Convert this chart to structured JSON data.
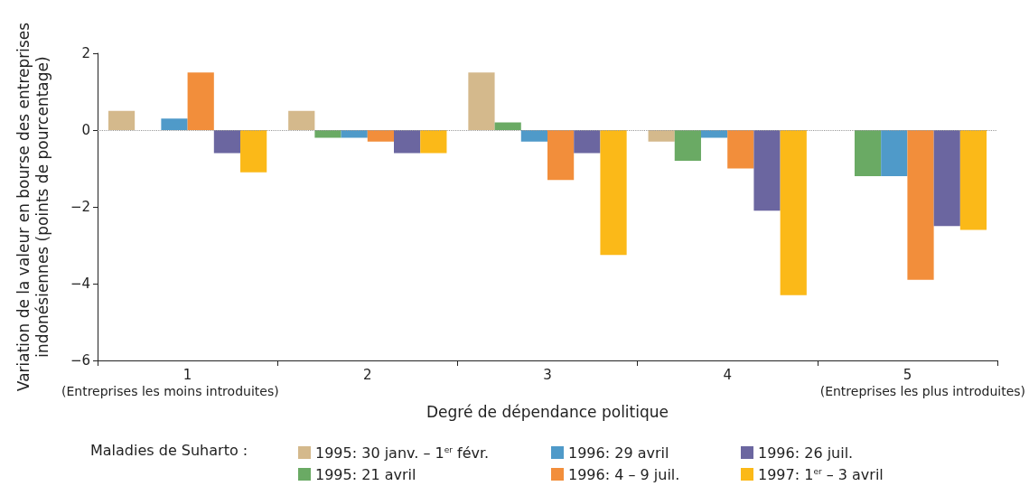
{
  "chart_data": {
    "type": "bar",
    "xlabel": "Degré de dépendance politique",
    "ylabel": "Variation de la valeur en bourse des entreprises indonésiennes (points de pourcentage)",
    "legend_title": "Maladies de Suharto :",
    "categories": [
      "1",
      "2",
      "3",
      "4",
      "5"
    ],
    "series": [
      {
        "name": "1995: 30 janv. – 1$^{er}$ févr.",
        "color": "#d4b98c",
        "values": [
          0.5,
          0.5,
          1.5,
          -0.3,
          null
        ]
      },
      {
        "name": "1995: 21 avril",
        "color": "#6aaa64",
        "values": [
          null,
          -0.2,
          0.2,
          -0.8,
          -1.2
        ]
      },
      {
        "name": "1996: 29 avril",
        "color": "#4f9ac9",
        "values": [
          0.3,
          -0.2,
          -0.3,
          -0.2,
          -1.2
        ]
      },
      {
        "name": "1996: 4 – 9 juil.",
        "color": "#f28e3b",
        "values": [
          1.5,
          -0.3,
          -1.3,
          -1.0,
          -3.9
        ]
      },
      {
        "name": "1996: 26 juil.",
        "color": "#6b66a0",
        "values": [
          -0.6,
          -0.6,
          -0.6,
          -2.1,
          -2.5
        ]
      },
      {
        "name": "1997: 1$^{er}$ – 3 avril",
        "color": "#fbb918",
        "values": [
          -1.1,
          -0.6,
          -3.25,
          -4.3,
          -2.6
        ]
      }
    ],
    "ylim": [
      -6,
      2
    ],
    "yticks": [
      -6,
      -4,
      -2,
      0,
      2
    ],
    "grid": false,
    "legend": "bottom",
    "ref_lines": [
      {
        "axis": "y",
        "value": 0,
        "label": null,
        "color": "#999999",
        "line_style": "dotted"
      }
    ],
    "annotations": [
      "(Entreprises les moins introduites)",
      "(Entreprises les plus introduites)"
    ]
  }
}
